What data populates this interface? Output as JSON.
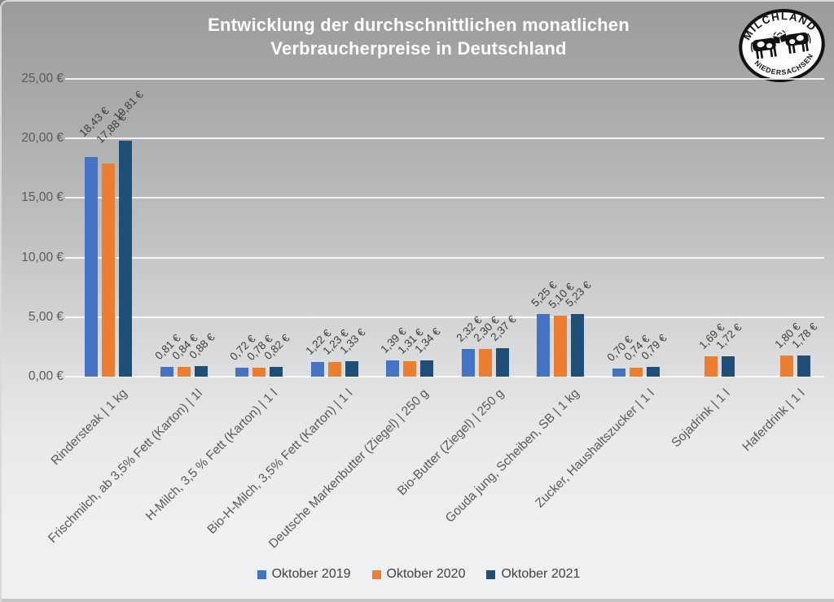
{
  "title": {
    "line1": "Entwicklung der durchschnittlichen monatlichen",
    "line2": "Verbraucherpreise in Deutschland"
  },
  "logo": {
    "top_text": "MILCHLAND",
    "bottom_text": "NIEDERSACHSEN"
  },
  "chart_data": {
    "type": "bar",
    "title": "Entwicklung der durchschnittlichen monatlichen Verbraucherpreise in Deutschland",
    "categories": [
      "Rindersteak | 1 kg",
      "Frischmilch, ab 3,5% Fett (Karton) | 1l",
      "H-Milch, 3,5 % Fett (Karton) | 1 l",
      "Bio-H-Milch, 3,5% Fett (Karton) | 1 l",
      "Deutsche Markenbutter (Ziegel) | 250 g",
      "Bio-Butter (Ziegel) | 250 g",
      "Gouda jung, Scheiben, SB | 1 kg",
      "Zucker, Haushaltszucker | 1 l",
      "Sojadrink | 1 l",
      "Haferdrink | 1 l"
    ],
    "series": [
      {
        "name": "Oktober 2019",
        "color": "#4472C4",
        "values": [
          18.43,
          0.81,
          0.72,
          1.22,
          1.39,
          2.32,
          5.25,
          0.7,
          null,
          null
        ],
        "value_labels": [
          "18,43 €",
          "0,81 €",
          "0,72 €",
          "1,22 €",
          "1,39 €",
          "2,32 €",
          "5,25 €",
          "0,70 €",
          null,
          null
        ]
      },
      {
        "name": "Oktober 2020",
        "color": "#ED7D31",
        "values": [
          17.88,
          0.84,
          0.78,
          1.23,
          1.31,
          2.3,
          5.1,
          0.74,
          1.69,
          1.8
        ],
        "value_labels": [
          "17,88 €",
          "0,84 €",
          "0,78 €",
          "1,23 €",
          "1,31 €",
          "2,30 €",
          "5,10 €",
          "0,74 €",
          "1,69 €",
          "1,80 €"
        ]
      },
      {
        "name": "Oktober 2021",
        "color": "#1F4E79",
        "values": [
          19.81,
          0.88,
          0.82,
          1.33,
          1.34,
          2.37,
          5.23,
          0.79,
          1.72,
          1.78
        ],
        "value_labels": [
          "19,81 €",
          "0,88 €",
          "0,82 €",
          "1,33 €",
          "1,34 €",
          "2,37 €",
          "5,23 €",
          "0,79 €",
          "1,72 €",
          "1,78 €"
        ]
      }
    ],
    "y_axis": {
      "min": 0,
      "max": 25,
      "step": 5,
      "tick_labels": [
        "0,00 €",
        "5,00 €",
        "10,00 €",
        "15,00 €",
        "20,00 €",
        "25,00 €"
      ]
    },
    "legend_position": "bottom",
    "grid": true
  }
}
